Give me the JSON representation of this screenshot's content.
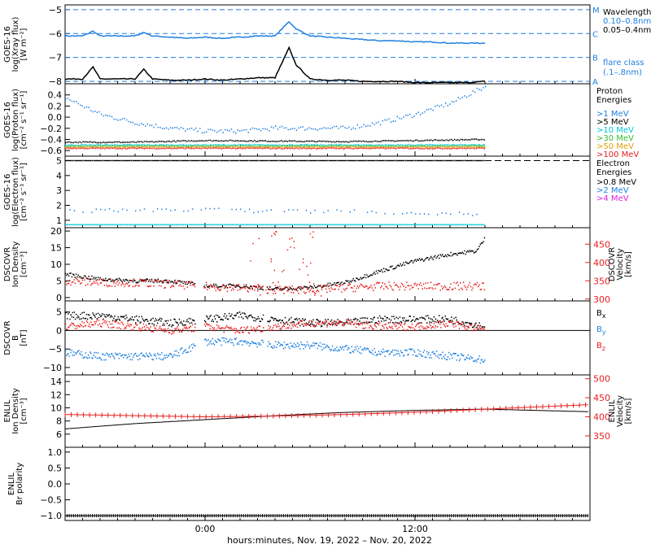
{
  "xaxis": {
    "label": "hours:minutes, Nov. 19, 2022 – Nov. 20, 2022",
    "ticks": [
      {
        "label": "0:00",
        "hour": 0
      },
      {
        "label": "12:00",
        "hour": 12
      }
    ],
    "range_hours": [
      -8,
      22
    ]
  },
  "colors": {
    "black": "#000000",
    "blue": "#1f7fe0",
    "cyan": "#00c8d8",
    "green": "#33bb33",
    "orange": "#e0a000",
    "red": "#e82020",
    "magenta": "#e020e0"
  },
  "chart_data": [
    {
      "type": "line",
      "id": "xray",
      "ylabel": [
        "GOES-16",
        "log(Xray flux)",
        "[W m⁻²]"
      ],
      "ylim": [
        -8.1,
        -4.8
      ],
      "yticks": [
        -5,
        -6,
        -7,
        -8
      ],
      "ytick_labels": [
        "−5",
        "−6",
        "−7",
        "−8"
      ],
      "flare_lines": [
        {
          "y": -5,
          "label": "M"
        },
        {
          "y": -6,
          "label": "C"
        },
        {
          "y": -7,
          "label": "B"
        },
        {
          "y": -8,
          "label": "A"
        }
      ],
      "legend": {
        "title": "Wavelength",
        "entries": [
          "0.10–0.8nm",
          "0.05–0.4nm"
        ],
        "footer": [
          "flare class",
          "(.1–.8nm)"
        ]
      },
      "series": [
        {
          "name": "0.10–0.8nm",
          "color": "blue",
          "x": [
            -8,
            -7,
            -6.4,
            -6,
            -5,
            -4,
            -3.5,
            -3,
            -2,
            -1,
            0,
            1,
            2,
            3,
            4,
            4.8,
            5.2,
            6,
            7,
            8,
            9,
            10,
            11,
            12,
            13,
            14,
            15,
            16
          ],
          "y": [
            -6.1,
            -6.1,
            -5.9,
            -6.1,
            -6.1,
            -6.1,
            -5.95,
            -6.1,
            -6.15,
            -6.2,
            -6.15,
            -6.2,
            -6.15,
            -6.1,
            -6.1,
            -5.5,
            -5.8,
            -6.1,
            -6.15,
            -6.2,
            -6.25,
            -6.3,
            -6.3,
            -6.35,
            -6.35,
            -6.4,
            -6.4,
            -6.4
          ]
        },
        {
          "name": "0.05–0.4nm",
          "color": "black",
          "x": [
            -8,
            -7,
            -6.4,
            -6,
            -5,
            -4,
            -3.5,
            -3,
            -2,
            -1,
            0,
            1,
            2,
            3,
            4,
            4.8,
            5.2,
            6,
            7,
            8,
            9,
            10,
            11,
            12,
            13,
            14,
            15,
            16
          ],
          "y": [
            -7.9,
            -7.9,
            -7.4,
            -7.9,
            -7.9,
            -7.9,
            -7.5,
            -7.9,
            -7.95,
            -7.95,
            -7.9,
            -7.95,
            -7.9,
            -7.85,
            -7.85,
            -6.6,
            -7.3,
            -7.9,
            -7.95,
            -7.95,
            -8.0,
            -8.0,
            -8.0,
            -8.05,
            -8.05,
            -8.05,
            -8.05,
            -8.0
          ]
        }
      ]
    },
    {
      "type": "scatter",
      "id": "proton",
      "ylabel": [
        "GOES-16",
        "log(Proton flux)",
        "[cm⁻² s⁻¹ sr⁻¹]"
      ],
      "ylim": [
        -0.7,
        0.6
      ],
      "yticks": [
        0.4,
        0.2,
        0.0,
        -0.2,
        -0.4,
        -0.6
      ],
      "ytick_labels": [
        "0.4",
        "0.2",
        "0.0",
        "−0.2",
        "−0.4",
        "−0.6"
      ],
      "legend": {
        "title": [
          "Proton",
          "Energies"
        ],
        "entries": [
          ">1 MeV",
          ">5 MeV",
          ">10 MeV",
          ">30 MeV",
          ">50 MeV",
          ">100 MeV"
        ]
      },
      "series": [
        {
          "name": ">1 MeV",
          "color": "blue",
          "x": [
            -8,
            -6,
            -4,
            -2,
            0,
            2,
            4,
            6,
            8,
            10,
            12,
            14,
            16
          ],
          "y": [
            0.35,
            0.05,
            -0.1,
            -0.2,
            -0.25,
            -0.25,
            -0.2,
            -0.2,
            -0.2,
            -0.1,
            0.05,
            0.25,
            0.55
          ]
        },
        {
          "name": ">5 MeV",
          "color": "black",
          "x": [
            -8,
            -4,
            0,
            4,
            8,
            12,
            16
          ],
          "y": [
            -0.45,
            -0.45,
            -0.42,
            -0.43,
            -0.44,
            -0.42,
            -0.4
          ]
        },
        {
          "name": ">10 MeV",
          "color": "cyan",
          "x": [
            -8,
            -4,
            0,
            4,
            8,
            12,
            16
          ],
          "y": [
            -0.5,
            -0.5,
            -0.5,
            -0.5,
            -0.5,
            -0.5,
            -0.5
          ]
        },
        {
          "name": ">30 MeV",
          "color": "green",
          "x": [
            -8,
            -4,
            0,
            4,
            8,
            12,
            16
          ],
          "y": [
            -0.52,
            -0.52,
            -0.52,
            -0.52,
            -0.52,
            -0.52,
            -0.52
          ]
        },
        {
          "name": ">50 MeV",
          "color": "orange",
          "x": [
            -8,
            -4,
            0,
            4,
            8,
            12,
            16
          ],
          "y": [
            -0.54,
            -0.54,
            -0.54,
            -0.54,
            -0.54,
            -0.54,
            -0.54
          ]
        },
        {
          "name": ">100 MeV",
          "color": "red",
          "x": [
            -8,
            -4,
            0,
            4,
            8,
            12,
            16
          ],
          "y": [
            -0.56,
            -0.56,
            -0.56,
            -0.56,
            -0.56,
            -0.56,
            -0.56
          ]
        }
      ]
    },
    {
      "type": "scatter",
      "id": "electron",
      "ylabel": [
        "GOES-16",
        "log(Electron flux)",
        "[cm⁻² s⁻¹ sr⁻¹]"
      ],
      "ylim": [
        0.5,
        5.3
      ],
      "yticks": [
        5,
        4,
        3,
        2,
        1
      ],
      "ytick_labels": [
        "5",
        "4",
        "3",
        "2",
        "1"
      ],
      "hline": 5,
      "legend": {
        "title": [
          "Electron",
          "Energies"
        ],
        "entries": [
          ">0.8 MeV",
          ">2 MeV",
          ">4 MeV"
        ]
      },
      "series": [
        {
          "name": ">0.8 MeV",
          "color": "black",
          "x": [
            -8,
            16
          ],
          "y": [
            5.0,
            5.0
          ]
        },
        {
          "name": ">2 MeV",
          "color": "blue",
          "x": [
            -8,
            -4,
            0,
            4,
            8,
            12,
            16
          ],
          "y": [
            1.6,
            1.7,
            1.7,
            1.6,
            1.6,
            1.5,
            1.4
          ]
        },
        {
          "name": ">4 MeV",
          "color": "cyan",
          "x": [
            -8,
            16
          ],
          "y": [
            0.7,
            0.7
          ]
        }
      ]
    },
    {
      "type": "scatter",
      "id": "dscovr_plasma",
      "ylabel": [
        "DSCOVR",
        "Ion Density",
        "[cm⁻³]"
      ],
      "ylabel_right": [
        "DSCOVR",
        "Velocity",
        "[km/s]"
      ],
      "ylim": [
        -1,
        21
      ],
      "yticks": [
        20,
        15,
        10,
        5,
        0
      ],
      "ytick_labels": [
        "20",
        "15",
        "10",
        "5",
        "0"
      ],
      "ylim_right": [
        295,
        495
      ],
      "yticks_right": [
        450,
        400,
        350,
        300
      ],
      "ytick_labels_right": [
        "450",
        "400",
        "350",
        "300"
      ],
      "series": [
        {
          "name": "Density",
          "color": "black",
          "x": [
            -8,
            -6,
            -4,
            -2,
            0,
            2,
            4,
            6,
            8,
            10,
            12,
            14,
            15.5,
            16
          ],
          "y": [
            7,
            5.5,
            5,
            5,
            3.5,
            3.5,
            2.5,
            3,
            4.5,
            8,
            11,
            13,
            14,
            18
          ]
        },
        {
          "name": "Velocity",
          "color": "red",
          "x": [
            -8,
            -6,
            -4,
            -2,
            0,
            2,
            4,
            6,
            8,
            10,
            12,
            14,
            16
          ],
          "y": [
            350,
            345,
            345,
            340,
            335,
            330,
            325,
            325,
            330,
            335,
            335,
            335,
            335
          ]
        }
      ]
    },
    {
      "type": "scatter",
      "id": "dscovr_mag",
      "ylabel": [
        "DSCOVR",
        "B",
        "[nT]"
      ],
      "ylim": [
        -12,
        8
      ],
      "yticks": [
        5,
        0,
        -5,
        -10
      ],
      "ytick_labels": [
        "5",
        "0",
        "−5",
        "−10"
      ],
      "legend": {
        "entries": [
          "Bx",
          "By",
          "Bz"
        ]
      },
      "series": [
        {
          "name": "Bx",
          "color": "black",
          "x": [
            -8,
            -6,
            -4,
            -2,
            0,
            2,
            4,
            6,
            8,
            10,
            12,
            14,
            16
          ],
          "y": [
            4,
            4,
            3,
            2,
            3,
            4,
            3,
            2,
            2,
            3,
            3,
            3,
            1
          ]
        },
        {
          "name": "By",
          "color": "blue",
          "x": [
            -8,
            -6,
            -4,
            -2,
            0,
            2,
            4,
            6,
            8,
            10,
            12,
            14,
            16
          ],
          "y": [
            -6,
            -7,
            -7,
            -7,
            -3,
            -3,
            -4,
            -4,
            -5,
            -6,
            -6,
            -7,
            -8
          ]
        },
        {
          "name": "Bz",
          "color": "red",
          "x": [
            -8,
            -6,
            -4,
            -2,
            0,
            2,
            4,
            6,
            8,
            10,
            12,
            14,
            16
          ],
          "y": [
            1,
            2,
            1,
            0,
            1,
            0,
            1,
            2,
            2,
            1,
            1,
            2,
            0
          ]
        }
      ]
    },
    {
      "type": "line",
      "id": "enlil_plasma",
      "ylabel": [
        "ENLIL",
        "Ion Density",
        "[cm⁻³]"
      ],
      "ylabel_right": [
        "ENLIL",
        "Velocity",
        "[km/s]"
      ],
      "ylim": [
        4,
        15
      ],
      "yticks": [
        14,
        12,
        10,
        8,
        6
      ],
      "ytick_labels": [
        "14",
        "12",
        "10",
        "8",
        "6"
      ],
      "ylim_right": [
        320,
        510
      ],
      "yticks_right": [
        500,
        450,
        400,
        350
      ],
      "ytick_labels_right": [
        "500",
        "450",
        "400",
        "350"
      ],
      "series": [
        {
          "name": "Density",
          "color": "black",
          "x": [
            -8,
            -4,
            0,
            4,
            8,
            12,
            16,
            22
          ],
          "y": [
            6.8,
            7.6,
            8.2,
            8.8,
            9.3,
            9.6,
            9.8,
            9.4
          ]
        },
        {
          "name": "Velocity",
          "color": "red",
          "x": [
            -8,
            -4,
            0,
            4,
            8,
            12,
            16,
            22
          ],
          "y": [
            406,
            403,
            400,
            402,
            406,
            412,
            420,
            432
          ]
        }
      ]
    },
    {
      "type": "line",
      "id": "enlil_polarity",
      "ylabel": [
        "ENLIL",
        "Br polarity"
      ],
      "ylim": [
        -1.15,
        1.15
      ],
      "yticks": [
        1.0,
        0.5,
        0.0,
        -0.5,
        -1.0
      ],
      "ytick_labels": [
        "1.0",
        "0.5",
        "0.0",
        "−0.5",
        "−1.0"
      ],
      "series": [
        {
          "name": "Polarity",
          "color": "black",
          "x": [
            -8,
            22
          ],
          "y": [
            -1.0,
            -1.0
          ]
        }
      ]
    }
  ]
}
